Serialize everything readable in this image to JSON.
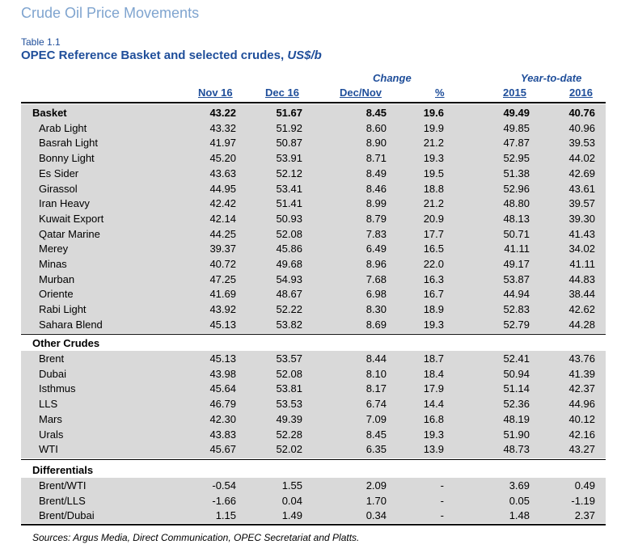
{
  "section_title": "Crude Oil Price Movements",
  "table_number": "Table 1.1",
  "table_title": "OPEC Reference Basket and selected crudes, ",
  "table_title_unit": "US$/b",
  "headers": {
    "change": "Change",
    "ytd": "Year-to-date",
    "nov16": "Nov 16",
    "dec16": "Dec 16",
    "decnov": "Dec/Nov",
    "pct": "%",
    "y2015": "2015",
    "y2016": "2016"
  },
  "basket": {
    "header": [
      "Basket",
      "43.22",
      "51.67",
      "8.45",
      "19.6",
      "49.49",
      "40.76"
    ],
    "rows": [
      [
        "Arab Light",
        "43.32",
        "51.92",
        "8.60",
        "19.9",
        "49.85",
        "40.96"
      ],
      [
        "Basrah Light",
        "41.97",
        "50.87",
        "8.90",
        "21.2",
        "47.87",
        "39.53"
      ],
      [
        "Bonny Light",
        "45.20",
        "53.91",
        "8.71",
        "19.3",
        "52.95",
        "44.02"
      ],
      [
        "Es Sider",
        "43.63",
        "52.12",
        "8.49",
        "19.5",
        "51.38",
        "42.69"
      ],
      [
        "Girassol",
        "44.95",
        "53.41",
        "8.46",
        "18.8",
        "52.96",
        "43.61"
      ],
      [
        "Iran Heavy",
        "42.42",
        "51.41",
        "8.99",
        "21.2",
        "48.80",
        "39.57"
      ],
      [
        "Kuwait Export",
        "42.14",
        "50.93",
        "8.79",
        "20.9",
        "48.13",
        "39.30"
      ],
      [
        "Qatar Marine",
        "44.25",
        "52.08",
        "7.83",
        "17.7",
        "50.71",
        "41.43"
      ],
      [
        "Merey",
        "39.37",
        "45.86",
        "6.49",
        "16.5",
        "41.11",
        "34.02"
      ],
      [
        "Minas",
        "40.72",
        "49.68",
        "8.96",
        "22.0",
        "49.17",
        "41.11"
      ],
      [
        "Murban",
        "47.25",
        "54.93",
        "7.68",
        "16.3",
        "53.87",
        "44.83"
      ],
      [
        "Oriente",
        "41.69",
        "48.67",
        "6.98",
        "16.7",
        "44.94",
        "38.44"
      ],
      [
        "Rabi Light",
        "43.92",
        "52.22",
        "8.30",
        "18.9",
        "52.83",
        "42.62"
      ],
      [
        "Sahara Blend",
        "45.13",
        "53.82",
        "8.69",
        "19.3",
        "52.79",
        "44.28"
      ]
    ]
  },
  "other": {
    "title": "Other Crudes",
    "rows": [
      [
        "Brent",
        "45.13",
        "53.57",
        "8.44",
        "18.7",
        "52.41",
        "43.76"
      ],
      [
        "Dubai",
        "43.98",
        "52.08",
        "8.10",
        "18.4",
        "50.94",
        "41.39"
      ],
      [
        "Isthmus",
        "45.64",
        "53.81",
        "8.17",
        "17.9",
        "51.14",
        "42.37"
      ],
      [
        "LLS",
        "46.79",
        "53.53",
        "6.74",
        "14.4",
        "52.36",
        "44.96"
      ],
      [
        "Mars",
        "42.30",
        "49.39",
        "7.09",
        "16.8",
        "48.19",
        "40.12"
      ],
      [
        "Urals",
        "43.83",
        "52.28",
        "8.45",
        "19.3",
        "51.90",
        "42.16"
      ],
      [
        "WTI",
        "45.67",
        "52.02",
        "6.35",
        "13.9",
        "48.73",
        "43.27"
      ]
    ]
  },
  "diff": {
    "title": "Differentials",
    "rows": [
      [
        "Brent/WTI",
        "-0.54",
        "1.55",
        "2.09",
        "-",
        "3.69",
        "0.49"
      ],
      [
        "Brent/LLS",
        "-1.66",
        "0.04",
        "1.70",
        "-",
        "0.05",
        "-1.19"
      ],
      [
        "Brent/Dubai",
        "1.15",
        "1.49",
        "0.34",
        "-",
        "1.48",
        "2.37"
      ]
    ]
  },
  "sources": "Sources:  Argus Media, Direct Communication, OPEC Secretariat and Platts."
}
